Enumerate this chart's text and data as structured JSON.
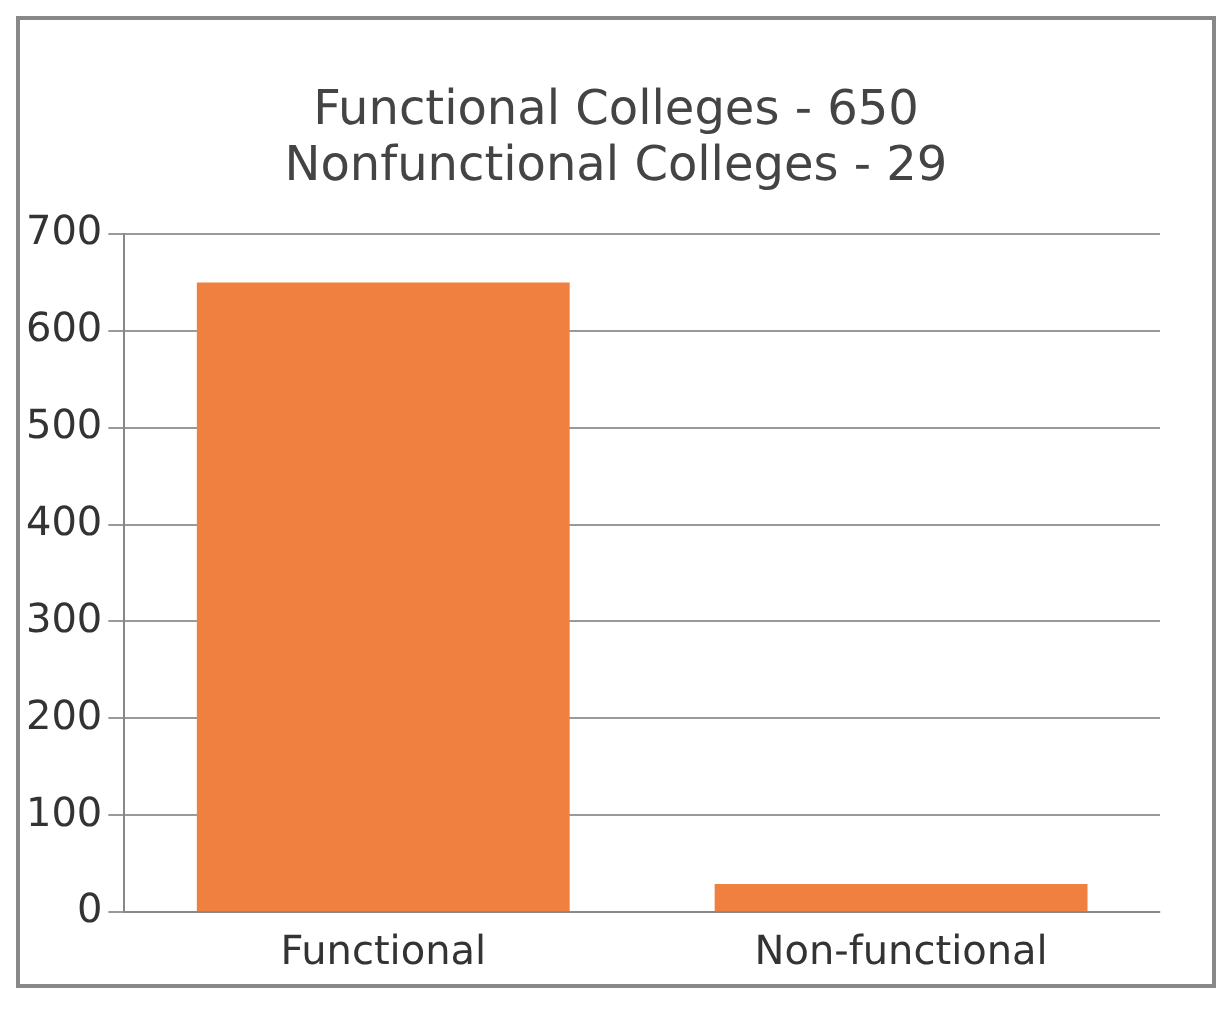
{
  "chart_data": {
    "type": "bar",
    "title": "Functional Colleges - 650\nNonfunctional Colleges - 29",
    "categories": [
      "Functional",
      "Non-functional"
    ],
    "values": [
      650,
      29
    ],
    "color": "#f08040",
    "ylim": [
      0,
      700
    ],
    "yticks": [
      0,
      100,
      200,
      300,
      400,
      500,
      600,
      700
    ],
    "grid": "y"
  }
}
